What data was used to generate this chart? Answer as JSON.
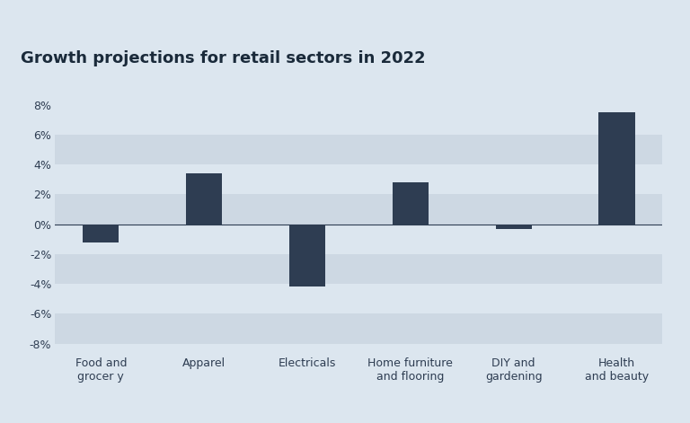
{
  "title": "Growth projections for retail sectors in 2022",
  "categories": [
    "Food and\ngrocer y",
    "Apparel",
    "Electricals",
    "Home furniture\nand flooring",
    "DIY and\ngardening",
    "Health\nand beauty"
  ],
  "values": [
    -1.2,
    3.4,
    -4.2,
    2.8,
    -0.3,
    7.5
  ],
  "bar_color": "#2e3d52",
  "background_color": "#dce6ef",
  "plot_bg_color": "#dce6ef",
  "top_margin_color": "#ffffff",
  "band_color_light": "#dce6ef",
  "band_color_dark": "#cdd8e3",
  "ylim": [
    -8.5,
    8.5
  ],
  "yticks": [
    -8,
    -6,
    -4,
    -2,
    0,
    2,
    4,
    6,
    8
  ],
  "ytick_labels": [
    "-8%",
    "-6%",
    "-4%",
    "-2%",
    "0%",
    "2%",
    "4%",
    "6%",
    "8%"
  ],
  "title_fontsize": 13,
  "tick_fontsize": 9,
  "bar_width": 0.35,
  "title_color": "#1a2a3a",
  "tick_color": "#2e3d52",
  "zero_line_color": "#2e3d52"
}
